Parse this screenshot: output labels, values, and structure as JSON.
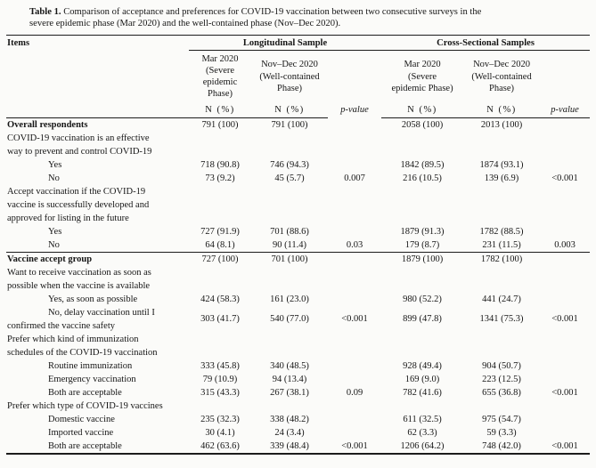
{
  "caption": {
    "label": "Table 1.",
    "text": "Comparison of acceptance and preferences for COVID-19 vaccination between two consecutive surveys in the\nsevere epidemic phase (Mar 2020) and the well-contained phase (Nov–Dec 2020)."
  },
  "table": {
    "col_items_header": "Items",
    "groups": [
      {
        "label": "Longitudinal Sample"
      },
      {
        "label": "Cross-Sectional Samples"
      }
    ],
    "subheaders": [
      "Mar 2020\n(Severe\nepidemic\nPhase)",
      "Nov–Dec 2020\n(Well-contained\nPhase)",
      "Mar 2020\n(Severe\nepidemic Phase)",
      "Nov–Dec 2020\n(Well-contained\nPhase)"
    ],
    "measure_header": "N (%)",
    "pvalue_header": "p-value",
    "rows": [
      {
        "label": "Overall respondents",
        "style": "bold",
        "values": [
          "791 (100)",
          "791 (100)",
          "",
          "2058 (100)",
          "2013 (100)",
          ""
        ]
      },
      {
        "label": "COVID-19 vaccination is an effective\nway to prevent and control COVID-19",
        "style": "question",
        "values": [
          "",
          "",
          "",
          "",
          "",
          ""
        ]
      },
      {
        "label": "Yes",
        "style": "indent",
        "values": [
          "718 (90.8)",
          "746 (94.3)",
          "",
          "1842 (89.5)",
          "1874 (93.1)",
          ""
        ]
      },
      {
        "label": "No",
        "style": "indent",
        "values": [
          "73 (9.2)",
          "45 (5.7)",
          "0.007",
          "216 (10.5)",
          "139 (6.9)",
          "<0.001"
        ]
      },
      {
        "label": "Accept vaccination if the COVID-19\nvaccine is successfully developed and\napproved for listing in the future",
        "style": "question",
        "values": [
          "",
          "",
          "",
          "",
          "",
          ""
        ]
      },
      {
        "label": "Yes",
        "style": "indent",
        "values": [
          "727 (91.9)",
          "701 (88.6)",
          "",
          "1879 (91.3)",
          "1782 (88.5)",
          ""
        ]
      },
      {
        "label": "No",
        "style": "indent",
        "separator_below": true,
        "values": [
          "64 (8.1)",
          "90 (11.4)",
          "0.03",
          "179 (8.7)",
          "231 (11.5)",
          "0.003"
        ]
      },
      {
        "label": "Vaccine accept group",
        "style": "bold",
        "values": [
          "727 (100)",
          "701 (100)",
          "",
          "1879 (100)",
          "1782 (100)",
          ""
        ]
      },
      {
        "label": "Want to receive vaccination as soon as\npossible when the vaccine is available",
        "style": "question",
        "values": [
          "",
          "",
          "",
          "",
          "",
          ""
        ]
      },
      {
        "label": "Yes, as soon as possible",
        "style": "indent",
        "values": [
          "424 (58.3)",
          "161 (23.0)",
          "",
          "980 (52.2)",
          "441 (24.7)",
          ""
        ]
      },
      {
        "label": "No, delay vaccination until I\nconfirmed the vaccine safety",
        "style": "indent",
        "values": [
          "303 (41.7)",
          "540 (77.0)",
          "<0.001",
          "899 (47.8)",
          "1341 (75.3)",
          "<0.001"
        ]
      },
      {
        "label": "Prefer which kind of immunization\nschedules of the COVID-19 vaccination",
        "style": "question",
        "values": [
          "",
          "",
          "",
          "",
          "",
          ""
        ]
      },
      {
        "label": "Routine immunization",
        "style": "indent",
        "values": [
          "333 (45.8)",
          "340 (48.5)",
          "",
          "928 (49.4)",
          "904 (50.7)",
          ""
        ]
      },
      {
        "label": "Emergency vaccination",
        "style": "indent",
        "values": [
          "79 (10.9)",
          "94 (13.4)",
          "",
          "169 (9.0)",
          "223 (12.5)",
          ""
        ]
      },
      {
        "label": "Both are acceptable",
        "style": "indent",
        "values": [
          "315 (43.3)",
          "267 (38.1)",
          "0.09",
          "782 (41.6)",
          "655 (36.8)",
          "<0.001"
        ]
      },
      {
        "label": "Prefer which type of COVID-19 vaccines",
        "style": "question",
        "values": [
          "",
          "",
          "",
          "",
          "",
          ""
        ]
      },
      {
        "label": "Domestic vaccine",
        "style": "indent",
        "values": [
          "235 (32.3)",
          "338 (48.2)",
          "",
          "611 (32.5)",
          "975 (54.7)",
          ""
        ]
      },
      {
        "label": "Imported vaccine",
        "style": "indent",
        "values": [
          "30 (4.1)",
          "24 (3.4)",
          "",
          "62 (3.3)",
          "59 (3.3)",
          ""
        ]
      },
      {
        "label": "Both are acceptable",
        "style": "indent",
        "values": [
          "462 (63.6)",
          "339 (48.4)",
          "<0.001",
          "1206 (64.2)",
          "748 (42.0)",
          "<0.001"
        ]
      }
    ]
  }
}
